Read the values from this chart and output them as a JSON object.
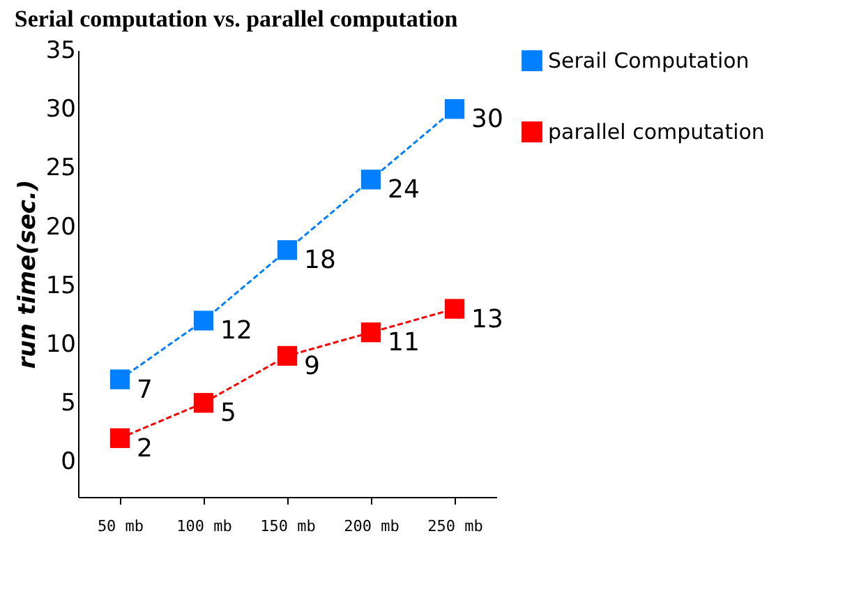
{
  "chart_data": {
    "type": "line",
    "title": "Serial computation vs. parallel computation",
    "ylabel": "run time(sec.)",
    "categories": [
      "50 mb",
      "100 mb",
      "150 mb",
      "200 mb",
      "250 mb"
    ],
    "series": [
      {
        "name": "Serail Computation",
        "color": "#0080ff",
        "values": [
          7,
          12,
          18,
          24,
          30
        ]
      },
      {
        "name": "parallel computation",
        "color": "#ff0000",
        "values": [
          2,
          5,
          9,
          11,
          13
        ]
      }
    ],
    "ylim": [
      -3,
      35
    ],
    "yticks": [
      0,
      5,
      10,
      15,
      20,
      25,
      30,
      35
    ],
    "grid": false,
    "legend": "right",
    "marker": "square",
    "line_style": "dashed",
    "data_labels": true
  }
}
